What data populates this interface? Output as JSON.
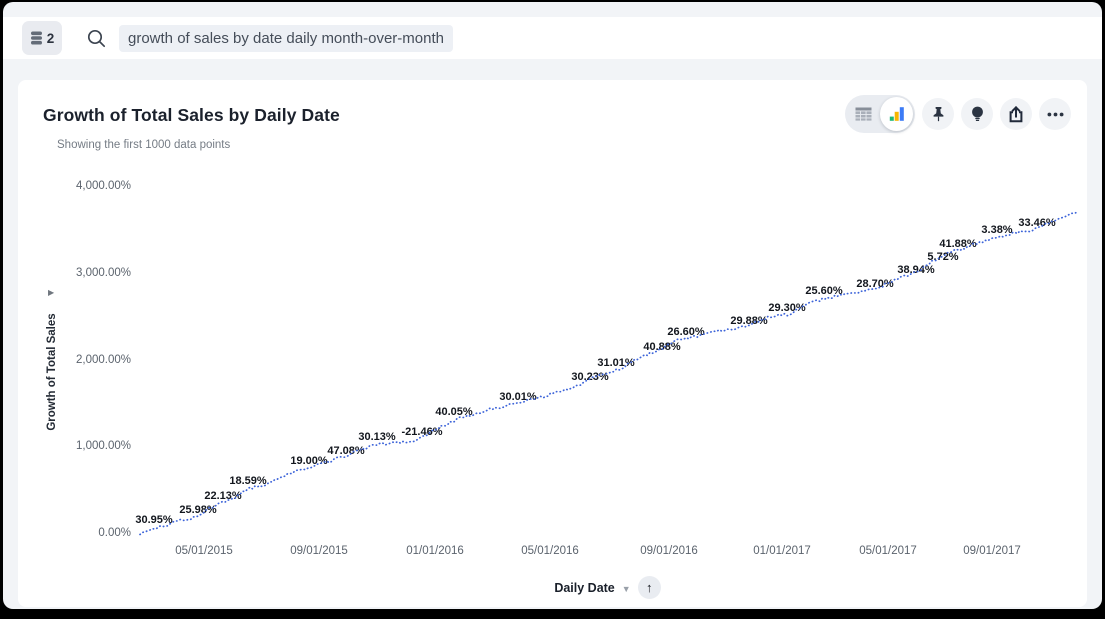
{
  "topbar": {
    "datasource_badge": {
      "icon": "database-icon",
      "count": "2"
    },
    "search": {
      "icon": "search-icon",
      "query": "growth of sales by date daily month-over-month"
    }
  },
  "answer": {
    "title": "Growth of Total Sales by Daily Date",
    "subtitle": "Showing the first 1000 data points",
    "toolbar": {
      "view_toggle": {
        "options": [
          "table-view",
          "chart-view"
        ],
        "selected": "chart-view"
      },
      "buttons": [
        "pin",
        "insights",
        "share",
        "more-options"
      ]
    }
  },
  "footer": {
    "x_axis_field": "Daily Date",
    "sort_direction": "ascending"
  },
  "chart_data": {
    "type": "line",
    "title": "Growth of Total Sales by Daily Date",
    "subtitle": "Showing the first 1000 data points",
    "xlabel": "Daily Date",
    "ylabel": "Growth of Total Sales",
    "ylim": [
      0,
      4000
    ],
    "y_unit": "%",
    "grid": false,
    "legend": false,
    "line_style": "dotted",
    "line_color": "#3d64d9",
    "data_label_color": "#12161d",
    "y_ticks": [
      {
        "label": "4,000.00%",
        "y": 186
      },
      {
        "label": "3,000.00%",
        "y": 273
      },
      {
        "label": "2,000.00%",
        "y": 360
      },
      {
        "label": "1,000.00%",
        "y": 446
      },
      {
        "label": "0.00%",
        "y": 533
      }
    ],
    "x_ticks": [
      {
        "label": "05/01/2015",
        "x": 204
      },
      {
        "label": "09/01/2015",
        "x": 319
      },
      {
        "label": "01/01/2016",
        "x": 435
      },
      {
        "label": "05/01/2016",
        "x": 550
      },
      {
        "label": "09/01/2016",
        "x": 669
      },
      {
        "label": "01/01/2017",
        "x": 782
      },
      {
        "label": "05/01/2017",
        "x": 888
      },
      {
        "label": "09/01/2017",
        "x": 992
      }
    ],
    "x_tick_y": 545,
    "mom_growth_values_pct": [
      30.95,
      25.98,
      22.13,
      18.59,
      19.0,
      47.08,
      30.13,
      -21.46,
      40.05,
      30.01,
      30.23,
      31.01,
      40.88,
      26.6,
      29.88,
      29.3,
      25.6,
      28.7,
      38.94,
      5.72,
      41.88,
      3.38,
      33.46
    ],
    "point_labels": [
      {
        "label": "30.95%",
        "x": 154,
        "y": 520
      },
      {
        "label": "25.98%",
        "x": 198,
        "y": 510
      },
      {
        "label": "22.13%",
        "x": 223,
        "y": 496
      },
      {
        "label": "18.59%",
        "x": 248,
        "y": 481
      },
      {
        "label": "19.00%",
        "x": 309,
        "y": 461
      },
      {
        "label": "47.08%",
        "x": 346,
        "y": 451
      },
      {
        "label": "30.13%",
        "x": 377,
        "y": 437
      },
      {
        "label": "-21.46%",
        "x": 422,
        "y": 432
      },
      {
        "label": "40.05%",
        "x": 454,
        "y": 412
      },
      {
        "label": "30.01%",
        "x": 518,
        "y": 397
      },
      {
        "label": "30.23%",
        "x": 590,
        "y": 377
      },
      {
        "label": "31.01%",
        "x": 616,
        "y": 363
      },
      {
        "label": "40.88%",
        "x": 662,
        "y": 347
      },
      {
        "label": "26.60%",
        "x": 686,
        "y": 332
      },
      {
        "label": "29.88%",
        "x": 749,
        "y": 321
      },
      {
        "label": "29.30%",
        "x": 787,
        "y": 308
      },
      {
        "label": "25.60%",
        "x": 824,
        "y": 291
      },
      {
        "label": "28.70%",
        "x": 875,
        "y": 284
      },
      {
        "label": "38.94%",
        "x": 916,
        "y": 270
      },
      {
        "label": "5.72%",
        "x": 943,
        "y": 257
      },
      {
        "label": "41.88%",
        "x": 958,
        "y": 244
      },
      {
        "label": "3.38%",
        "x": 997,
        "y": 230
      },
      {
        "label": "33.46%",
        "x": 1037,
        "y": 223
      }
    ],
    "line_anchors": [
      [
        140,
        534
      ],
      [
        160,
        527
      ],
      [
        175,
        522
      ],
      [
        196,
        517
      ],
      [
        215,
        505
      ],
      [
        230,
        500
      ],
      [
        250,
        488
      ],
      [
        262,
        486
      ],
      [
        280,
        478
      ],
      [
        300,
        470
      ],
      [
        322,
        464
      ],
      [
        342,
        457
      ],
      [
        362,
        449
      ],
      [
        380,
        444
      ],
      [
        398,
        443
      ],
      [
        418,
        440
      ],
      [
        438,
        428
      ],
      [
        455,
        420
      ],
      [
        475,
        414
      ],
      [
        495,
        408
      ],
      [
        515,
        404
      ],
      [
        538,
        398
      ],
      [
        558,
        392
      ],
      [
        578,
        385
      ],
      [
        600,
        375
      ],
      [
        622,
        368
      ],
      [
        640,
        357
      ],
      [
        660,
        350
      ],
      [
        678,
        340
      ],
      [
        700,
        336
      ],
      [
        722,
        330
      ],
      [
        745,
        327
      ],
      [
        768,
        317
      ],
      [
        790,
        314
      ],
      [
        812,
        302
      ],
      [
        835,
        296
      ],
      [
        858,
        292
      ],
      [
        880,
        287
      ],
      [
        900,
        278
      ],
      [
        918,
        272
      ],
      [
        932,
        262
      ],
      [
        950,
        252
      ],
      [
        965,
        248
      ],
      [
        980,
        242
      ],
      [
        998,
        238
      ],
      [
        1015,
        233
      ],
      [
        1032,
        230
      ],
      [
        1048,
        224
      ],
      [
        1062,
        218
      ],
      [
        1078,
        211
      ]
    ],
    "yaxis_title_pos": {
      "x": 52,
      "y": 372
    },
    "yaxis_arrow_pos": {
      "x": 48,
      "y": 288
    }
  }
}
